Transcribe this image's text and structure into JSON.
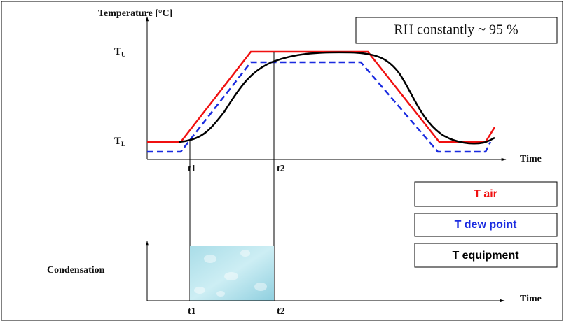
{
  "diagram": {
    "y_axis_title": "Temperature [°C]",
    "note": "RH constantly ~ 95 %",
    "upper_level": {
      "text": "T",
      "sub": "U"
    },
    "lower_level": {
      "text": "T",
      "sub": "L"
    },
    "top_x_axis_title": "Time",
    "top_markers": [
      "t1",
      "t2"
    ],
    "bottom_y_axis_title": "Condensation",
    "bottom_x_axis_title": "Time",
    "bottom_markers": [
      "t1",
      "t2"
    ],
    "legend": [
      "T air",
      "T dew point",
      "T equipment"
    ]
  }
}
